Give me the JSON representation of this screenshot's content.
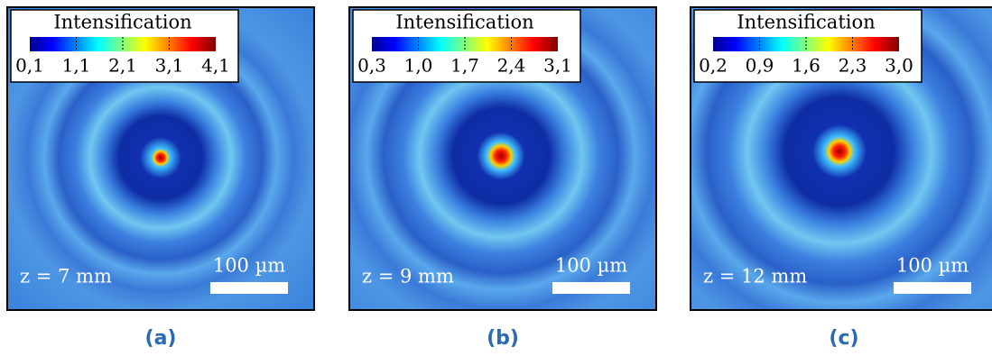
{
  "panels": [
    {
      "colorbar_title": "Intensification",
      "ticks": [
        "0,1",
        "1,1",
        "2,1",
        "3,1",
        "4,1"
      ],
      "z_label": "z = 7 mm",
      "scale_label": "100 µm",
      "caption": "(a)"
    },
    {
      "colorbar_title": "Intensification",
      "ticks": [
        "0,3",
        "1,0",
        "1,7",
        "2,4",
        "3,1"
      ],
      "z_label": "z = 9 mm",
      "scale_label": "100 µm",
      "caption": "(b)"
    },
    {
      "colorbar_title": "Intensification",
      "ticks": [
        "0,2",
        "0,9",
        "1,6",
        "2,3",
        "3,0"
      ],
      "z_label": "z = 12 mm",
      "scale_label": "100 µm",
      "caption": "(c)"
    }
  ]
}
